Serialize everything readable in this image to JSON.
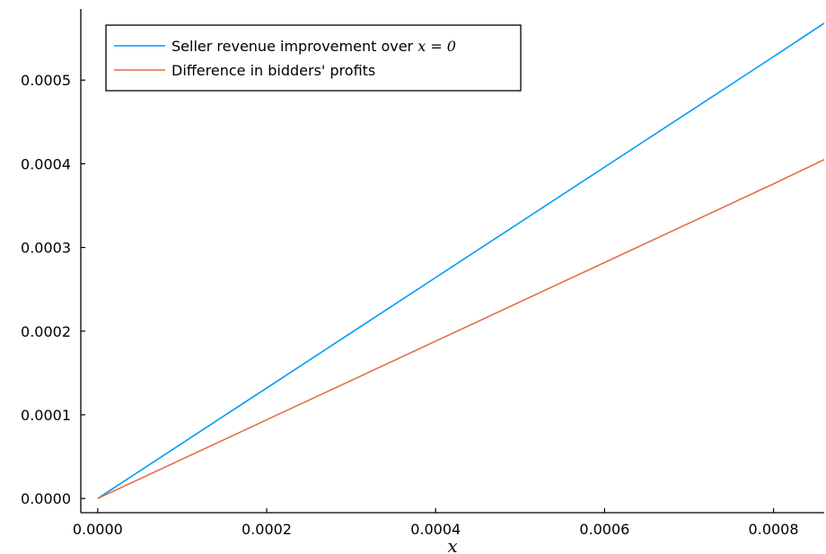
{
  "chart_data": {
    "type": "line",
    "title": "",
    "xlabel": "x",
    "ylabel": "",
    "xlim": [
      -2e-05,
      0.00086
    ],
    "ylim": [
      -1.7e-05,
      0.000585
    ],
    "grid": false,
    "legend_position": "top-left",
    "x_ticks": [
      0,
      0.0002,
      0.0004,
      0.0006,
      0.0008
    ],
    "x_tick_labels": [
      "0.0000",
      "0.0002",
      "0.0004",
      "0.0006",
      "0.0008"
    ],
    "y_ticks": [
      0,
      0.0001,
      0.0002,
      0.0003,
      0.0004,
      0.0005
    ],
    "y_tick_labels": [
      "0.0000",
      "0.0001",
      "0.0002",
      "0.0003",
      "0.0004",
      "0.0005"
    ],
    "series": [
      {
        "name": "Seller revenue improvement over ",
        "name_math": "x = 0",
        "color": "#009AF9",
        "x": [
          0,
          0.0002,
          0.0004,
          0.0006,
          0.0008,
          0.00086
        ],
        "y": [
          0,
          0.000132,
          0.000264,
          0.000396,
          0.000528,
          0.000568
        ]
      },
      {
        "name": "Difference in bidders' profits",
        "color": "#E26F46",
        "x": [
          0,
          0.0002,
          0.0004,
          0.0006,
          0.0008,
          0.00086
        ],
        "y": [
          0,
          9.4e-05,
          0.000188,
          0.000282,
          0.000376,
          0.000405
        ]
      }
    ]
  }
}
